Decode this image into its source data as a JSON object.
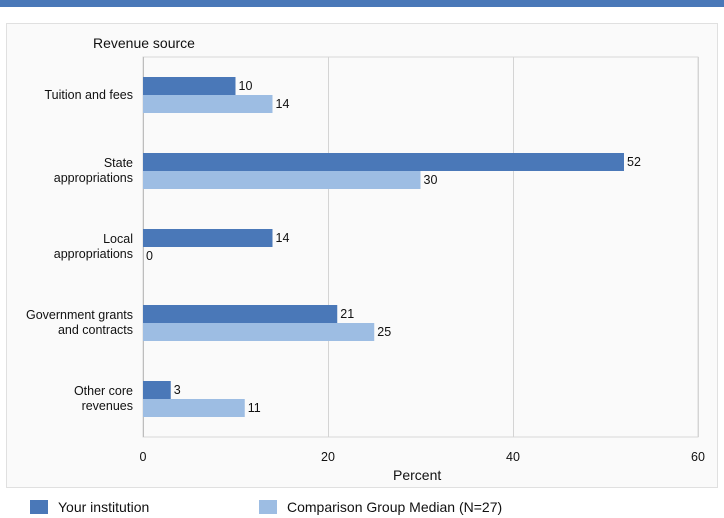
{
  "chart_data": {
    "type": "bar",
    "orientation": "horizontal",
    "title": "",
    "ylabel": "Revenue source",
    "xlabel": "Percent",
    "categories": [
      "Tuition and fees",
      "State\nappropriations",
      "Local\nappropriations",
      "Government grants\nand contracts",
      "Other core\nrevenues"
    ],
    "series": [
      {
        "name": "Your institution",
        "color": "#4a78b8",
        "values": [
          10,
          52,
          14,
          21,
          3
        ]
      },
      {
        "name": "Comparison Group Median (N=27)",
        "color": "#9dbde3",
        "values": [
          14,
          30,
          0,
          25,
          11
        ]
      }
    ],
    "xlim": [
      0,
      60
    ],
    "xticks": [
      "0",
      "20",
      "40",
      "60"
    ],
    "grid": "vertical",
    "legend_position": "bottom"
  }
}
